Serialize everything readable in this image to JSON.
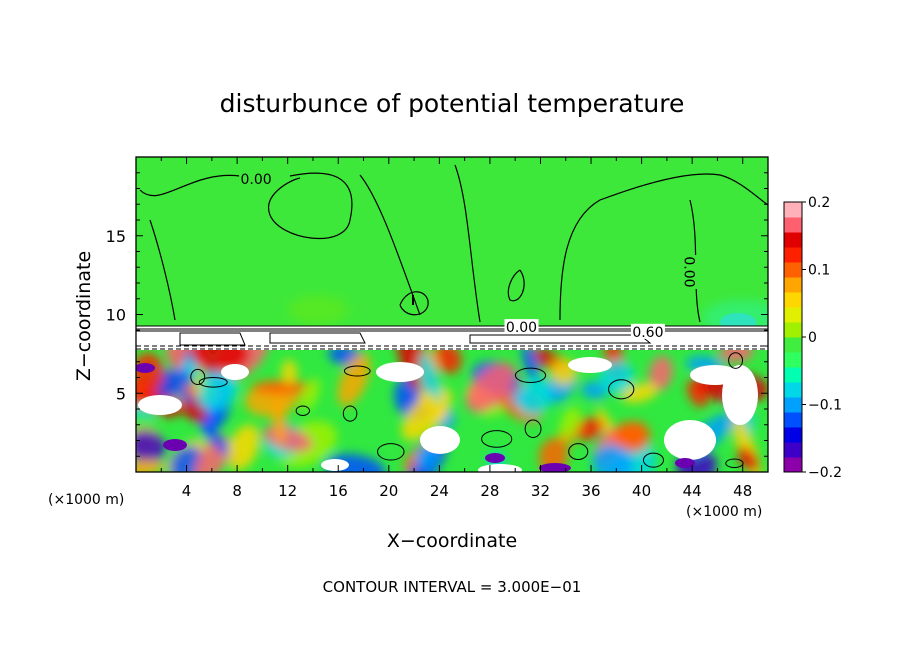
{
  "chart_data": {
    "type": "heatmap",
    "title": "disturbunce of potential temperature",
    "xlabel": "X−coordinate",
    "ylabel": "Z−coordinate",
    "x_unit_left": "(×1000 m)",
    "x_unit_right": "(×1000 m)",
    "xlim": [
      0,
      50
    ],
    "ylim": [
      0,
      20
    ],
    "x_ticks": [
      4,
      8,
      12,
      16,
      20,
      24,
      28,
      32,
      36,
      40,
      44,
      48
    ],
    "y_ticks": [
      5,
      10,
      15
    ],
    "contour_labels": [
      {
        "text": "0.00",
        "x": 9.5,
        "z": 18.6
      },
      {
        "text": "0.00",
        "x": 30.5,
        "z": 9.2
      },
      {
        "text": "0.60",
        "x": 40.5,
        "z": 8.9
      },
      {
        "text": "0.00",
        "x": 43.8,
        "z": 12.7,
        "rotated": true
      }
    ],
    "contour_interval_text": "CONTOUR INTERVAL =  3.000E−01",
    "colorbar": {
      "min": -0.2,
      "max": 0.2,
      "tick_values": [
        0.2,
        0.1,
        0,
        -0.1,
        -0.2
      ],
      "tick_labels": [
        "0.2",
        "0.1",
        "0",
        "−0.1",
        "−0.2"
      ],
      "colors": [
        "#8b00a8",
        "#3c00c8",
        "#0000e6",
        "#0050ff",
        "#00a0ff",
        "#00d8e8",
        "#00ffb0",
        "#30ff60",
        "#40ee40",
        "#a0f000",
        "#e0f000",
        "#ffd700",
        "#ffa500",
        "#ff6000",
        "#ff2000",
        "#e00000",
        "#ff6070",
        "#ffb0b8"
      ]
    },
    "regions": [
      {
        "name": "upper layer (z > 9 km)",
        "value": 0.0
      },
      {
        "name": "inversion band (z 8-9 km)",
        "value": "white, above range"
      },
      {
        "name": "lower turbulent layer (z < 8 km)",
        "value": "mixed -0.2 to 0.2"
      }
    ]
  }
}
